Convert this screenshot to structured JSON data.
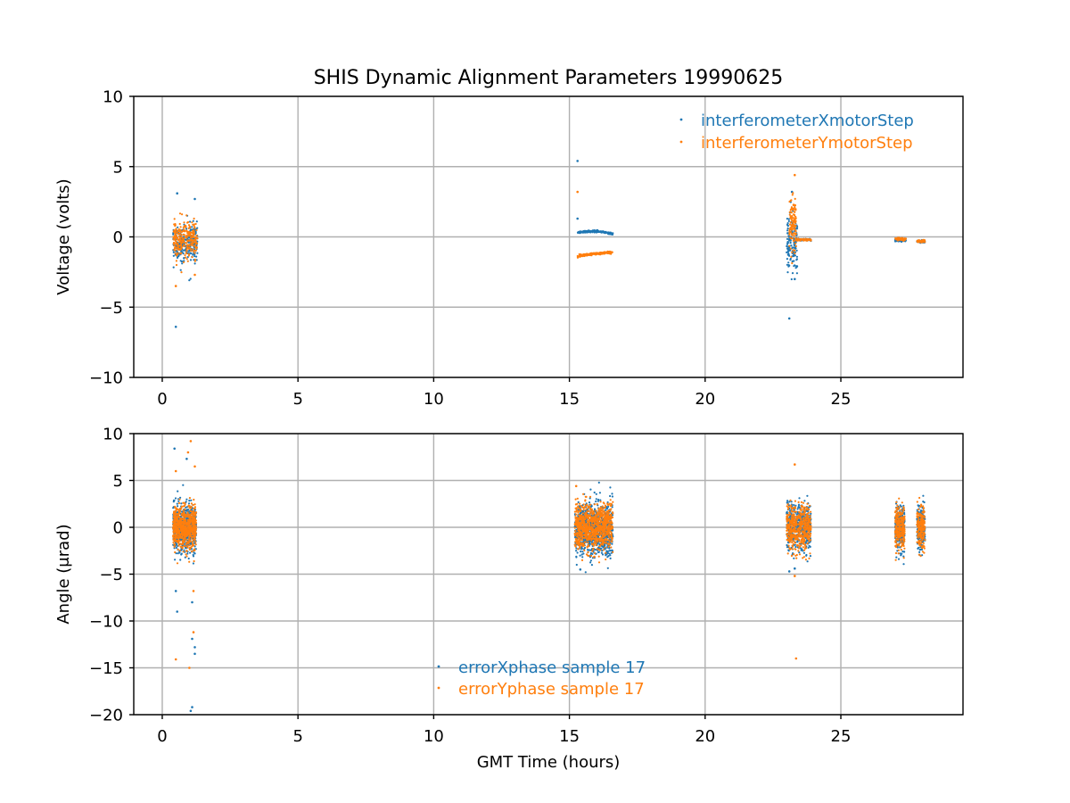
{
  "figure": {
    "title": "SHIS Dynamic Alignment Parameters 19990625"
  },
  "chart_data": [
    {
      "type": "scatter",
      "xlabel": "",
      "ylabel": "Voltage (volts)",
      "xlim": [
        -1.05,
        29.5
      ],
      "ylim": [
        -10,
        10
      ],
      "xticks": [
        0,
        5,
        10,
        15,
        20,
        25
      ],
      "yticks": [
        -10,
        -5,
        0,
        5,
        10
      ],
      "xtick_labels": [
        "0",
        "5",
        "10",
        "15",
        "20",
        "25"
      ],
      "ytick_labels": [
        "−10",
        "−5",
        "0",
        "5",
        "10"
      ],
      "grid": true,
      "legend": "top-right",
      "series": [
        {
          "name": "interferometerXmotorStep",
          "color": "#1f77b4",
          "clusters": [
            {
              "x_range": [
                0.4,
                1.3
              ],
              "center": -0.4,
              "spread": 1.6,
              "count": 260
            },
            {
              "x_range": [
                15.3,
                16.6
              ],
              "center": 0.3,
              "spread": 0.08,
              "count": 220,
              "trend": "arc"
            },
            {
              "x_range": [
                23.0,
                23.4
              ],
              "center": -0.4,
              "spread": 2.6,
              "count": 140
            },
            {
              "x_range": [
                23.4,
                23.9
              ],
              "center": -0.2,
              "spread": 0.1,
              "count": 60
            },
            {
              "x_range": [
                27.0,
                27.4
              ],
              "center": -0.25,
              "spread": 0.1,
              "count": 60
            },
            {
              "x_range": [
                27.8,
                28.1
              ],
              "center": -0.35,
              "spread": 0.1,
              "count": 40
            }
          ],
          "outliers": [
            [
              0.5,
              -6.4
            ],
            [
              0.55,
              3.1
            ],
            [
              1.2,
              2.7
            ],
            [
              15.3,
              5.4
            ],
            [
              15.3,
              1.3
            ],
            [
              23.1,
              -5.8
            ],
            [
              23.2,
              3.2
            ],
            [
              23.3,
              -3.0
            ]
          ]
        },
        {
          "name": "interferometerYmotorStep",
          "color": "#ff7f0e",
          "clusters": [
            {
              "x_range": [
                0.4,
                1.3
              ],
              "center": -0.2,
              "spread": 1.5,
              "count": 260
            },
            {
              "x_range": [
                15.3,
                16.6
              ],
              "center": -1.3,
              "spread": 0.1,
              "count": 220,
              "trend": "rise"
            },
            {
              "x_range": [
                23.1,
                23.35
              ],
              "center": 1.0,
              "spread": 2.3,
              "count": 120
            },
            {
              "x_range": [
                23.35,
                23.9
              ],
              "center": -0.2,
              "spread": 0.1,
              "count": 60
            },
            {
              "x_range": [
                27.0,
                27.4
              ],
              "center": -0.15,
              "spread": 0.12,
              "count": 60
            },
            {
              "x_range": [
                27.8,
                28.1
              ],
              "center": -0.3,
              "spread": 0.12,
              "count": 40
            }
          ],
          "outliers": [
            [
              0.5,
              -3.5
            ],
            [
              1.2,
              -2.7
            ],
            [
              15.3,
              3.2
            ],
            [
              23.3,
              4.4
            ]
          ]
        }
      ]
    },
    {
      "type": "scatter",
      "xlabel": "GMT Time (hours)",
      "ylabel": "Angle (μrad)",
      "xlim": [
        -1.05,
        29.5
      ],
      "ylim": [
        -20,
        10
      ],
      "xticks": [
        0,
        5,
        10,
        15,
        20,
        25
      ],
      "yticks": [
        -20,
        -15,
        -10,
        -5,
        0,
        5,
        10
      ],
      "xtick_labels": [
        "0",
        "5",
        "10",
        "15",
        "20",
        "25"
      ],
      "ytick_labels": [
        "−20",
        "−15",
        "−10",
        "−5",
        "0",
        "5",
        "10"
      ],
      "grid": true,
      "legend": "lower-center",
      "series": [
        {
          "name": "errorXphase sample 17",
          "color": "#1f77b4",
          "clusters": [
            {
              "x_range": [
                0.4,
                1.25
              ],
              "center": 0.0,
              "spread": 3.0,
              "count": 650
            },
            {
              "x_range": [
                15.2,
                16.6
              ],
              "center": -0.3,
              "spread": 3.5,
              "count": 900
            },
            {
              "x_range": [
                23.0,
                23.9
              ],
              "center": 0.0,
              "spread": 3.0,
              "count": 500
            },
            {
              "x_range": [
                27.0,
                27.35
              ],
              "center": -0.2,
              "spread": 3.0,
              "count": 260
            },
            {
              "x_range": [
                27.8,
                28.1
              ],
              "center": -0.2,
              "spread": 3.0,
              "count": 220
            }
          ],
          "outliers": [
            [
              0.45,
              8.4
            ],
            [
              0.55,
              -9.0
            ],
            [
              0.5,
              -6.8
            ],
            [
              0.9,
              7.3
            ],
            [
              1.1,
              -19.2
            ],
            [
              1.05,
              -19.6
            ],
            [
              1.1,
              -11.9
            ],
            [
              1.2,
              -12.8
            ],
            [
              1.2,
              -13.5
            ],
            [
              1.1,
              -8.0
            ],
            [
              15.4,
              -4.5
            ],
            [
              23.3,
              -4.4
            ],
            [
              23.1,
              -4.7
            ]
          ]
        },
        {
          "name": "errorYphase sample 17",
          "color": "#ff7f0e",
          "clusters": [
            {
              "x_range": [
                0.4,
                1.25
              ],
              "center": 0.0,
              "spread": 2.8,
              "count": 650
            },
            {
              "x_range": [
                15.2,
                16.6
              ],
              "center": 0.0,
              "spread": 3.0,
              "count": 900
            },
            {
              "x_range": [
                23.0,
                23.9
              ],
              "center": 0.0,
              "spread": 2.8,
              "count": 500
            },
            {
              "x_range": [
                27.0,
                27.35
              ],
              "center": 0.0,
              "spread": 2.8,
              "count": 260
            },
            {
              "x_range": [
                27.8,
                28.1
              ],
              "center": 0.0,
              "spread": 2.8,
              "count": 220
            }
          ],
          "outliers": [
            [
              0.5,
              6.0
            ],
            [
              0.5,
              -14.1
            ],
            [
              1.05,
              9.2
            ],
            [
              0.95,
              8.0
            ],
            [
              1.2,
              6.5
            ],
            [
              1.0,
              -15.0
            ],
            [
              1.15,
              -11.2
            ],
            [
              1.15,
              -6.8
            ],
            [
              15.25,
              4.4
            ],
            [
              23.3,
              6.7
            ],
            [
              23.35,
              -14.0
            ],
            [
              23.3,
              -5.2
            ]
          ]
        }
      ]
    }
  ]
}
